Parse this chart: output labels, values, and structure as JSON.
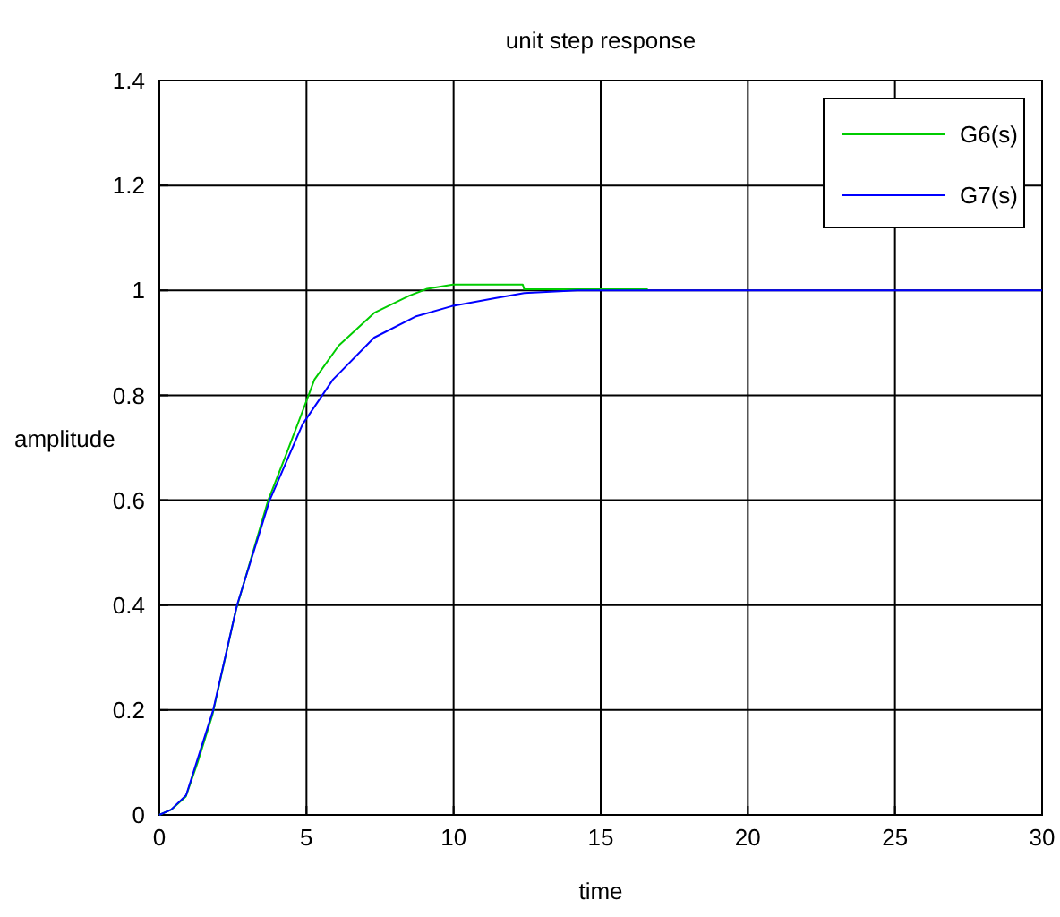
{
  "chart_data": {
    "type": "line",
    "title": "unit step response",
    "xlabel": "time",
    "ylabel": "amplitude",
    "xlim": [
      0,
      30
    ],
    "xticks": [
      0,
      5,
      10,
      15,
      20,
      25,
      30
    ],
    "ylim": [
      0,
      1.4
    ],
    "yticks": [
      0,
      0.2,
      0.4,
      0.6,
      0.8,
      1,
      1.2,
      1.4
    ],
    "grid": true,
    "legend": "top right",
    "marker": "none",
    "line_style": "solid",
    "series": [
      {
        "name": "G6(s)",
        "color": "#00cc00",
        "x": [
          0,
          0.4,
          0.9,
          1.3,
          1.8,
          2.6,
          3.7,
          4.26,
          4.87,
          5.27,
          6.1,
          7.3,
          8.5,
          9.1,
          9.98,
          12.35,
          12.4,
          16.6
        ],
        "values": [
          0,
          0.01,
          0.035,
          0.1,
          0.19,
          0.39,
          0.6,
          0.68,
          0.77,
          0.83,
          0.895,
          0.957,
          0.99,
          1.003,
          1.011,
          1.011,
          1.002,
          1.002
        ]
      },
      {
        "name": "G7(s)",
        "color": "#0000ff",
        "x": [
          0,
          0.4,
          0.91,
          1.32,
          1.83,
          2.64,
          3.75,
          4.87,
          5.9,
          7.3,
          8.7,
          9.94,
          11.4,
          12.4,
          14.2,
          30
        ],
        "values": [
          0,
          0.01,
          0.0375,
          0.11,
          0.2,
          0.4,
          0.6,
          0.745,
          0.83,
          0.91,
          0.95,
          0.97,
          0.985,
          0.995,
          1,
          1
        ]
      }
    ]
  }
}
